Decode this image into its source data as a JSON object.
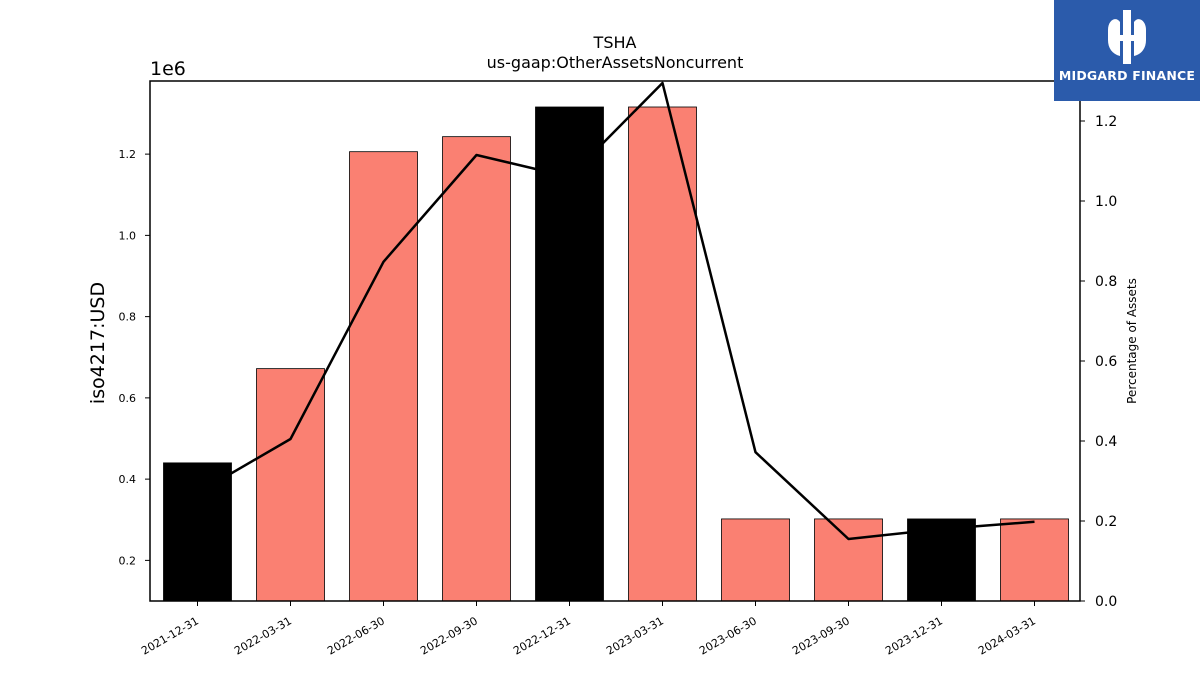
{
  "chart_data": {
    "type": "bar",
    "title": "TSHA",
    "subtitle": "us-gaap:OtherAssetsNoncurrent",
    "ylabel": "iso4217:USD",
    "y_offset_label": "1e6",
    "y2label": "Percentage of Assets",
    "categories": [
      "2021-12-31",
      "2022-03-31",
      "2022-06-30",
      "2022-09-30",
      "2022-12-31",
      "2023-03-31",
      "2023-06-30",
      "2023-09-30",
      "2023-12-31",
      "2024-03-31"
    ],
    "values": [
      440000,
      672000,
      1206000,
      1243000,
      1316000,
      1316000,
      302000,
      302000,
      302000,
      302000
    ],
    "highlight_indices": [
      0,
      4,
      8
    ],
    "ylim": [
      100000,
      1380000
    ],
    "yticks": [
      0.2,
      0.4,
      0.6,
      0.8,
      1.0,
      1.2
    ],
    "line": {
      "name": "Percentage of Assets",
      "values": [
        0.27,
        0.405,
        0.848,
        1.115,
        1.06,
        1.295,
        0.372,
        0.155,
        0.18,
        0.198
      ]
    },
    "y2lim": [
      0.0,
      1.3
    ],
    "y2ticks": [
      "0.0",
      "0.2",
      "0.4",
      "0.6",
      "0.8",
      "1.0",
      "1.2"
    ],
    "colors": {
      "bar": "#fa8072",
      "highlight_bar": "#000000",
      "line": "#000000"
    },
    "grid": false
  },
  "logo": {
    "text": "MIDGARD FINANCE",
    "icon": "midgard-logo-icon",
    "color": "#2b5bab"
  }
}
